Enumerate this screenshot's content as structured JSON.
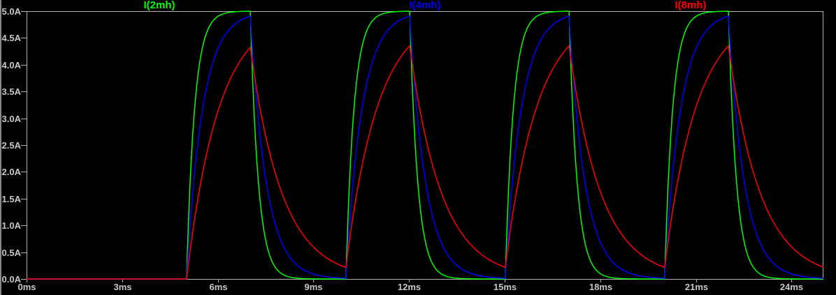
{
  "window": {
    "background": "#000000",
    "edge_line_color": "#8a8a8a"
  },
  "chart_data": {
    "type": "line",
    "title": "",
    "description": "Transient simulation of RL charging/discharging currents for three inductors driven by a repeating voltage pulse",
    "grid": false,
    "legend_position": "top-inline",
    "axis_color": "#b2b2b2",
    "text_color": "#c8c8c8",
    "x_axis": {
      "unit": "ms",
      "range_ms": [
        0,
        25
      ],
      "tick_step_ms": 3,
      "ticks": [
        {
          "value": 0,
          "label": "0ms"
        },
        {
          "value": 3,
          "label": "3ms"
        },
        {
          "value": 6,
          "label": "6ms"
        },
        {
          "value": 9,
          "label": "9ms"
        },
        {
          "value": 12,
          "label": "12ms"
        },
        {
          "value": 15,
          "label": "15ms"
        },
        {
          "value": 18,
          "label": "18ms"
        },
        {
          "value": 21,
          "label": "21ms"
        },
        {
          "value": 24,
          "label": "24ms"
        }
      ]
    },
    "y_axis": {
      "unit": "A",
      "range_A": [
        0,
        5
      ],
      "tick_step_A": 0.5,
      "ticks": [
        {
          "value": 5.0,
          "label": "5.0A"
        },
        {
          "value": 4.5,
          "label": "4.5A"
        },
        {
          "value": 4.0,
          "label": "4.0A"
        },
        {
          "value": 3.5,
          "label": "3.5A"
        },
        {
          "value": 3.0,
          "label": "3.0A"
        },
        {
          "value": 2.5,
          "label": "2.5A"
        },
        {
          "value": 2.0,
          "label": "2.0A"
        },
        {
          "value": 1.5,
          "label": "1.5A"
        },
        {
          "value": 1.0,
          "label": "1.0A"
        },
        {
          "value": 0.5,
          "label": "0.5A"
        },
        {
          "value": 0.0,
          "label": "0.0A"
        }
      ]
    },
    "excitation_pulse": {
      "first_rise_ms": 5,
      "on_duration_ms": 2,
      "period_ms": 5,
      "pulse_count": 4,
      "steady_state_target_A": 5
    },
    "sample_step_ms": 0.02,
    "series": [
      {
        "name": "I(2mh)",
        "color": "#00ff00",
        "time_constant_ms": 0.25,
        "peak_A": 5.0,
        "value_at_t0_A": 0.0
      },
      {
        "name": "I(4mh)",
        "color": "#0000ff",
        "time_constant_ms": 0.5,
        "peak_A": 4.91,
        "value_at_t0_A": 0.0
      },
      {
        "name": "I(8mh)",
        "color": "#ff0000",
        "time_constant_ms": 1.0,
        "peak_A": 4.33,
        "value_at_t0_A": 0.0
      }
    ]
  }
}
